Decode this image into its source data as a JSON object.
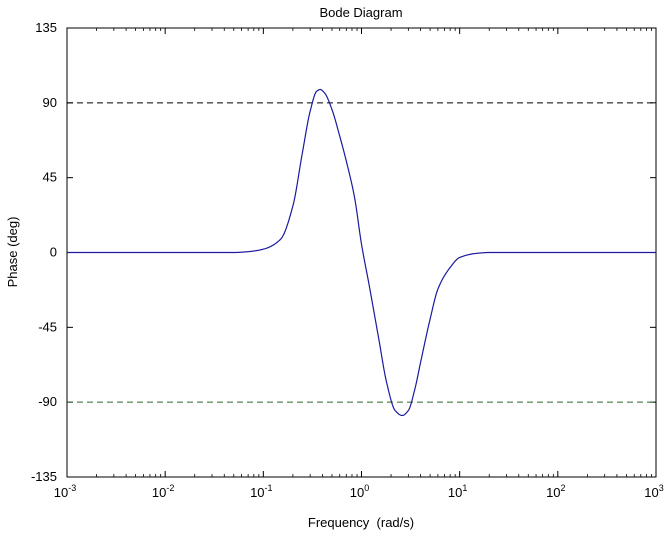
{
  "chart_data": {
    "type": "line",
    "title": "Bode Diagram",
    "xlabel": "Frequency  (rad/s)",
    "ylabel": "Phase (deg)",
    "xscale": "log",
    "xlim": [
      0.001,
      1000
    ],
    "ylim": [
      -135,
      135
    ],
    "grid": false,
    "x_ticks": [
      {
        "base": "10",
        "exp": "-3"
      },
      {
        "base": "10",
        "exp": "-2"
      },
      {
        "base": "10",
        "exp": "-1"
      },
      {
        "base": "10",
        "exp": "0"
      },
      {
        "base": "10",
        "exp": "1"
      },
      {
        "base": "10",
        "exp": "2"
      },
      {
        "base": "10",
        "exp": "3"
      }
    ],
    "y_ticks": [
      "135",
      "90",
      "45",
      "0",
      "-45",
      "-90",
      "-135"
    ],
    "reference_lines": [
      {
        "y": 90,
        "color": "#000000",
        "style": "dashed"
      },
      {
        "y": -90,
        "color": "#2e6b2e",
        "style": "dashed"
      }
    ],
    "series": [
      {
        "color": "#1a1aa0",
        "x": [
          0.001,
          0.01,
          0.05,
          0.07,
          0.1,
          0.15,
          0.2,
          0.25,
          0.3,
          0.35,
          0.38,
          0.42,
          0.5,
          0.6,
          0.7,
          0.85,
          1.0,
          1.2,
          1.5,
          1.8,
          2.2,
          2.6,
          3.0,
          3.5,
          4.0,
          5.0,
          6.0,
          8.0,
          10,
          15,
          20,
          100,
          1000
        ],
        "y": [
          0,
          0,
          0,
          0.5,
          2,
          8,
          28,
          60,
          85,
          97,
          98,
          96,
          86,
          70,
          55,
          33,
          5,
          -20,
          -52,
          -78,
          -95,
          -98,
          -95,
          -82,
          -66,
          -40,
          -22,
          -9,
          -3,
          -0.5,
          0,
          0,
          0
        ]
      }
    ]
  }
}
